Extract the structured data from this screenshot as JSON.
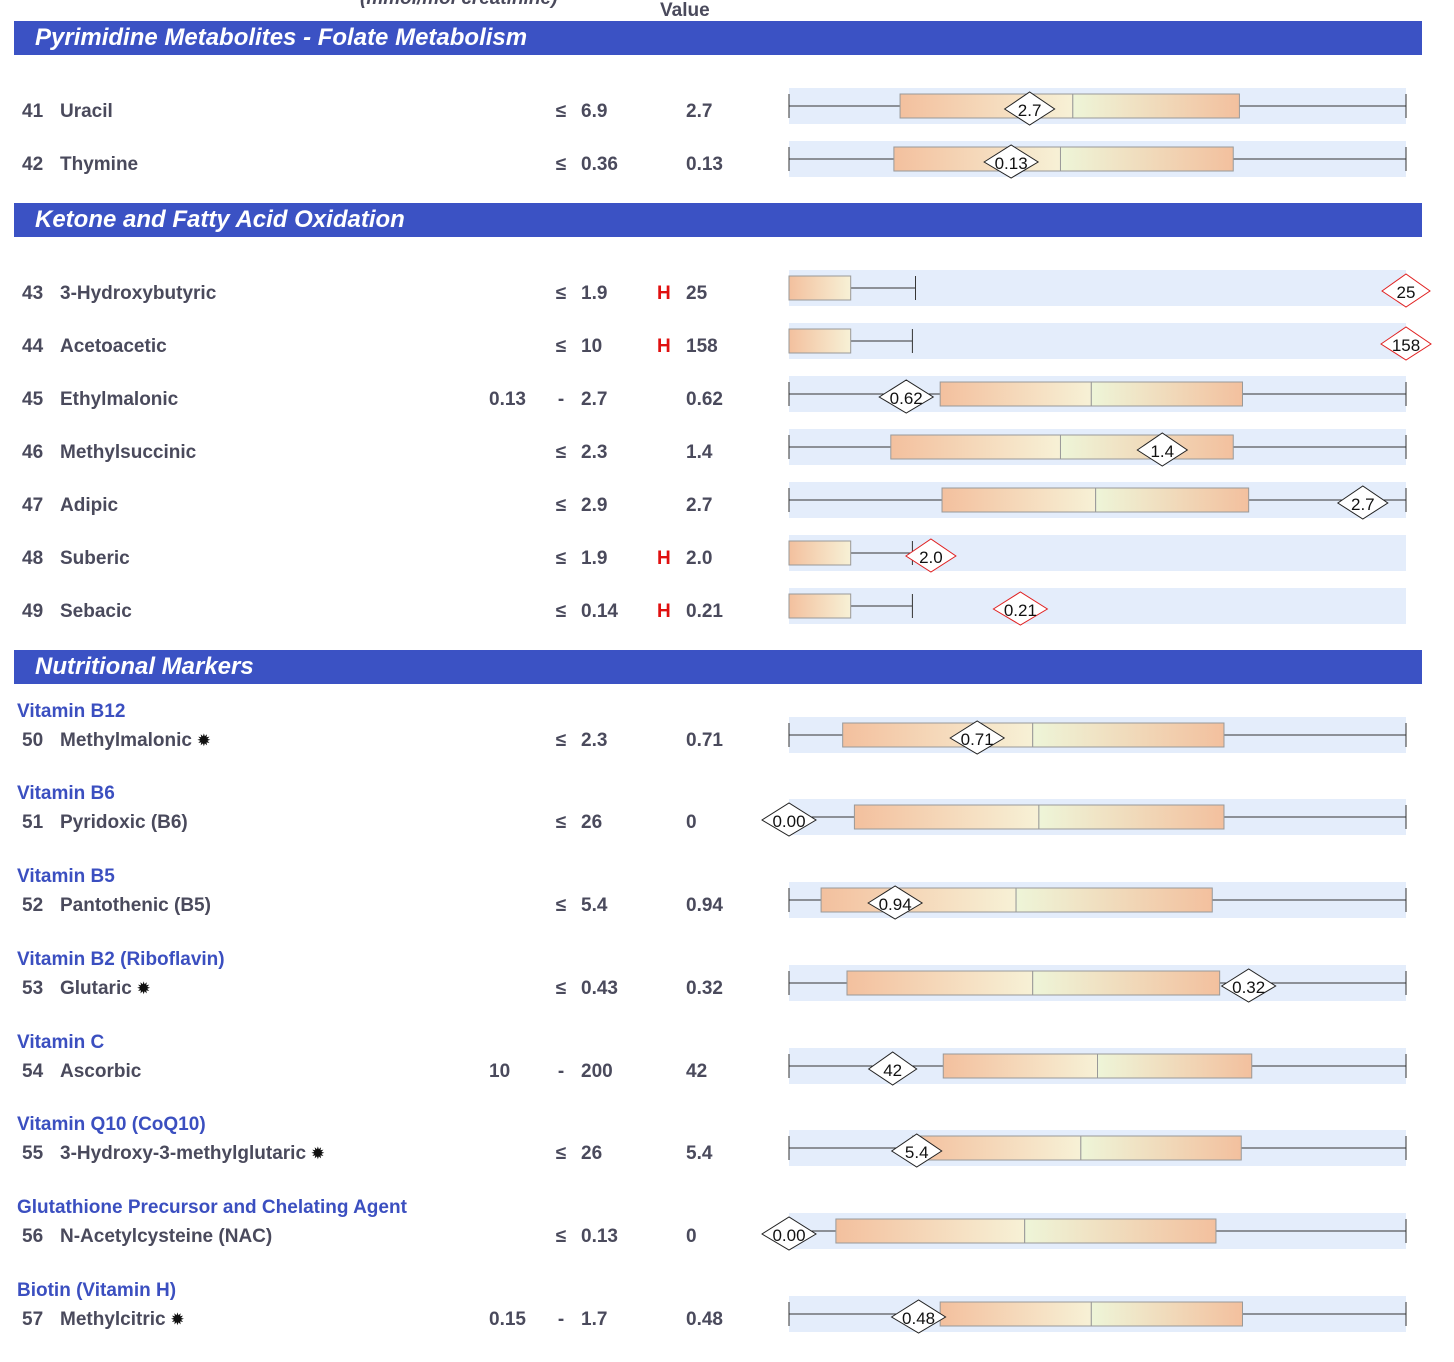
{
  "cut_header": {
    "left": "(mmol/mol creatinine)",
    "right": "Value"
  },
  "sections": [
    {
      "title": "Pyrimidine Metabolites - Folate Metabolism",
      "rows": [
        {
          "num": "41",
          "name": "Uracil",
          "lo": "",
          "op": "≤",
          "hi": "6.9",
          "flag": "",
          "value": "2.7",
          "marker": "2.7",
          "high": false,
          "plot": {
            "whisker_lo": 0.0,
            "box_lo": 0.18,
            "median": 0.46,
            "box_hi": 0.73,
            "whisker_hi": 1.0,
            "marker_pos": 0.39
          }
        },
        {
          "num": "42",
          "name": "Thymine",
          "lo": "",
          "op": "≤",
          "hi": "0.36",
          "flag": "",
          "value": "0.13",
          "marker": "0.13",
          "high": false,
          "plot": {
            "whisker_lo": 0.0,
            "box_lo": 0.17,
            "median": 0.44,
            "box_hi": 0.72,
            "whisker_hi": 1.0,
            "marker_pos": 0.36
          }
        }
      ]
    },
    {
      "title": "Ketone and Fatty Acid Oxidation",
      "rows": [
        {
          "num": "43",
          "name": "3-Hydroxybutyric",
          "lo": "",
          "op": "≤",
          "hi": "1.9",
          "flag": "H",
          "value": "25",
          "marker": "25",
          "high": true,
          "plot": {
            "whisker_lo": 0.0,
            "box_lo": 0.0,
            "median": 0.0,
            "box_hi": 0.1,
            "whisker_hi": 0.205,
            "marker_pos": 1.0
          }
        },
        {
          "num": "44",
          "name": "Acetoacetic",
          "lo": "",
          "op": "≤",
          "hi": "10",
          "flag": "H",
          "value": "158",
          "marker": "158",
          "high": true,
          "plot": {
            "whisker_lo": 0.0,
            "box_lo": 0.0,
            "median": 0.0,
            "box_hi": 0.1,
            "whisker_hi": 0.2,
            "marker_pos": 1.0
          }
        },
        {
          "num": "45",
          "name": "Ethylmalonic",
          "lo": "0.13",
          "op": "-",
          "hi": "2.7",
          "flag": "",
          "value": "0.62",
          "marker": "0.62",
          "high": false,
          "plot": {
            "whisker_lo": 0.0,
            "box_lo": 0.245,
            "median": 0.49,
            "box_hi": 0.735,
            "whisker_hi": 1.0,
            "marker_pos": 0.19
          }
        },
        {
          "num": "46",
          "name": "Methylsuccinic",
          "lo": "",
          "op": "≤",
          "hi": "2.3",
          "flag": "",
          "value": "1.4",
          "marker": "1.4",
          "high": false,
          "plot": {
            "whisker_lo": 0.0,
            "box_lo": 0.165,
            "median": 0.44,
            "box_hi": 0.72,
            "whisker_hi": 1.0,
            "marker_pos": 0.605
          }
        },
        {
          "num": "47",
          "name": "Adipic",
          "lo": "",
          "op": "≤",
          "hi": "2.9",
          "flag": "",
          "value": "2.7",
          "marker": "2.7",
          "high": false,
          "plot": {
            "whisker_lo": 0.0,
            "box_lo": 0.248,
            "median": 0.497,
            "box_hi": 0.745,
            "whisker_hi": 1.0,
            "marker_pos": 0.93
          }
        },
        {
          "num": "48",
          "name": "Suberic",
          "lo": "",
          "op": "≤",
          "hi": "1.9",
          "flag": "H",
          "value": "2.0",
          "marker": "2.0",
          "high": true,
          "plot": {
            "whisker_lo": 0.0,
            "box_lo": 0.0,
            "median": 0.0,
            "box_hi": 0.1,
            "whisker_hi": 0.2,
            "marker_pos": 0.23
          }
        },
        {
          "num": "49",
          "name": "Sebacic",
          "lo": "",
          "op": "≤",
          "hi": "0.14",
          "flag": "H",
          "value": "0.21",
          "marker": "0.21",
          "high": true,
          "plot": {
            "whisker_lo": 0.0,
            "box_lo": 0.0,
            "median": 0.0,
            "box_hi": 0.1,
            "whisker_hi": 0.2,
            "marker_pos": 0.375
          }
        }
      ]
    },
    {
      "title": "Nutritional Markers",
      "groups": [
        {
          "label": "Vitamin B12",
          "row": {
            "num": "50",
            "name": "Methylmalonic",
            "star": true,
            "lo": "",
            "op": "≤",
            "hi": "2.3",
            "flag": "",
            "value": "0.71",
            "marker": "0.71",
            "high": false,
            "plot": {
              "whisker_lo": 0.0,
              "box_lo": 0.087,
              "median": 0.395,
              "box_hi": 0.705,
              "whisker_hi": 1.0,
              "marker_pos": 0.305
            }
          }
        },
        {
          "label": "Vitamin B6",
          "row": {
            "num": "51",
            "name": "Pyridoxic (B6)",
            "star": false,
            "lo": "",
            "op": "≤",
            "hi": "26",
            "flag": "",
            "value": "0",
            "marker": "0.00",
            "high": false,
            "plot": {
              "whisker_lo": 0.0,
              "box_lo": 0.106,
              "median": 0.405,
              "box_hi": 0.705,
              "whisker_hi": 1.0,
              "marker_pos": 0.0
            }
          }
        },
        {
          "label": "Vitamin B5",
          "row": {
            "num": "52",
            "name": "Pantothenic (B5)",
            "star": false,
            "lo": "",
            "op": "≤",
            "hi": "5.4",
            "flag": "",
            "value": "0.94",
            "marker": "0.94",
            "high": false,
            "plot": {
              "whisker_lo": 0.0,
              "box_lo": 0.052,
              "median": 0.368,
              "box_hi": 0.686,
              "whisker_hi": 1.0,
              "marker_pos": 0.172
            }
          }
        },
        {
          "label": "Vitamin B2 (Riboflavin)",
          "row": {
            "num": "53",
            "name": "Glutaric",
            "star": true,
            "lo": "",
            "op": "≤",
            "hi": "0.43",
            "flag": "",
            "value": "0.32",
            "marker": "0.32",
            "high": false,
            "plot": {
              "whisker_lo": 0.0,
              "box_lo": 0.094,
              "median": 0.395,
              "box_hi": 0.698,
              "whisker_hi": 1.0,
              "marker_pos": 0.745
            }
          }
        },
        {
          "label": "Vitamin C",
          "row": {
            "num": "54",
            "name": "Ascorbic",
            "star": false,
            "lo": "10",
            "op": "-",
            "hi": "200",
            "flag": "",
            "value": "42",
            "marker": "42",
            "high": false,
            "plot": {
              "whisker_lo": 0.0,
              "box_lo": 0.25,
              "median": 0.5,
              "box_hi": 0.75,
              "whisker_hi": 1.0,
              "marker_pos": 0.168
            }
          }
        },
        {
          "label": "Vitamin Q10 (CoQ10)",
          "row": {
            "num": "55",
            "name": "3-Hydroxy-3-methylglutaric",
            "star": true,
            "lo": "",
            "op": "≤",
            "hi": "26",
            "flag": "",
            "value": "5.4",
            "marker": "5.4",
            "high": false,
            "plot": {
              "whisker_lo": 0.0,
              "box_lo": 0.2,
              "median": 0.473,
              "box_hi": 0.733,
              "whisker_hi": 1.0,
              "marker_pos": 0.207
            }
          }
        },
        {
          "label": "Glutathione Precursor and Chelating Agent",
          "row": {
            "num": "56",
            "name": "N-Acetylcysteine (NAC)",
            "star": false,
            "lo": "",
            "op": "≤",
            "hi": "0.13",
            "flag": "",
            "value": "0",
            "marker": "0.00",
            "high": false,
            "plot": {
              "whisker_lo": 0.0,
              "box_lo": 0.076,
              "median": 0.382,
              "box_hi": 0.692,
              "whisker_hi": 1.0,
              "marker_pos": 0.0
            }
          }
        },
        {
          "label": "Biotin (Vitamin H)",
          "row": {
            "num": "57",
            "name": "Methylcitric",
            "star": true,
            "lo": "0.15",
            "op": "-",
            "hi": "1.7",
            "flag": "",
            "value": "0.48",
            "marker": "0.48",
            "high": false,
            "plot": {
              "whisker_lo": 0.0,
              "box_lo": 0.245,
              "median": 0.49,
              "box_hi": 0.735,
              "whisker_hi": 1.0,
              "marker_pos": 0.21
            }
          }
        }
      ]
    }
  ]
}
